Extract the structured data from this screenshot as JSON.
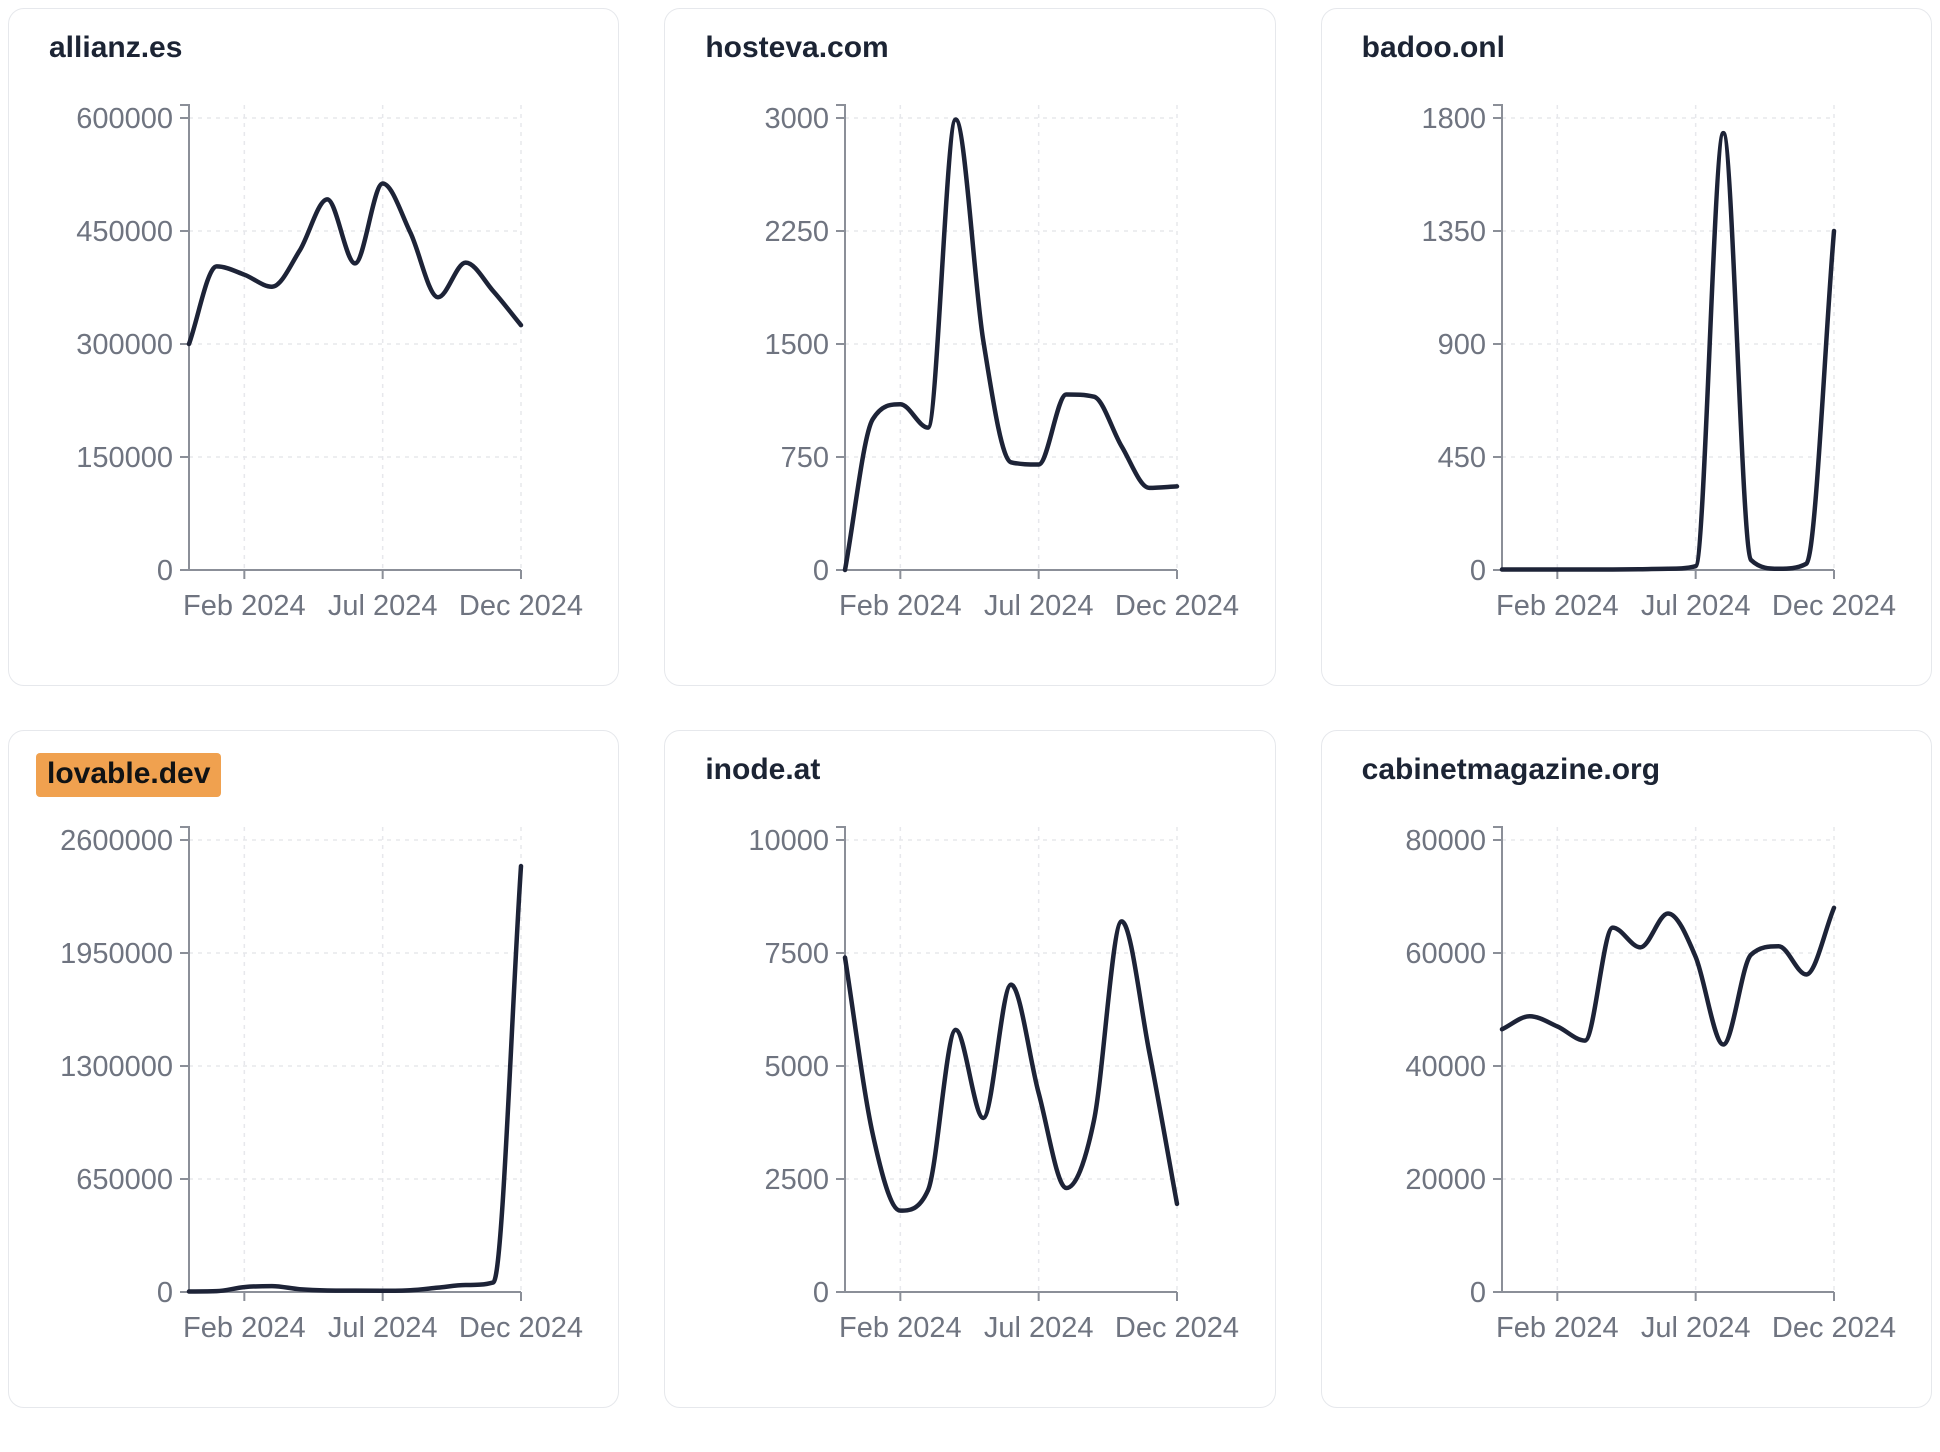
{
  "page": {
    "background": "#ffffff",
    "highlight_color": "#f0a14f",
    "line_color": "#1d2337",
    "axis_color": "#8b8f98",
    "gridline_color": "#e7e8ec",
    "tick_label_color": "#6f7480",
    "title_color": "#1c2434"
  },
  "chart_data": [
    {
      "type": "line",
      "title": "allianz.es",
      "highlighted": false,
      "xlabel": "",
      "ylabel": "",
      "ylim": [
        0,
        600000
      ],
      "grid": true,
      "legend": false,
      "y_tick_labels": [
        "0",
        "150000",
        "300000",
        "450000",
        "600000"
      ],
      "x_tick_labels": [
        "Feb 2024",
        "Jul 2024",
        "Dec 2024"
      ],
      "x": [
        "Dec 2023",
        "Jan 2024",
        "Feb 2024",
        "Mar 2024",
        "Apr 2024",
        "May 2024",
        "Jun 2024",
        "Jul 2024",
        "Aug 2024",
        "Sep 2024",
        "Oct 2024",
        "Nov 2024",
        "Dec 2024"
      ],
      "values": [
        300000,
        403000,
        392000,
        376000,
        424000,
        492000,
        407000,
        513000,
        448000,
        362000,
        408000,
        370000,
        325000
      ]
    },
    {
      "type": "line",
      "title": "hosteva.com",
      "highlighted": false,
      "xlabel": "",
      "ylabel": "",
      "ylim": [
        0,
        3000
      ],
      "grid": true,
      "legend": false,
      "y_tick_labels": [
        "0",
        "750",
        "1500",
        "2250",
        "3000"
      ],
      "x_tick_labels": [
        "Feb 2024",
        "Jul 2024",
        "Dec 2024"
      ],
      "x": [
        "Dec 2023",
        "Jan 2024",
        "Feb 2024",
        "Mar 2024",
        "Apr 2024",
        "May 2024",
        "Jun 2024",
        "Jul 2024",
        "Aug 2024",
        "Sep 2024",
        "Oct 2024",
        "Nov 2024",
        "Dec 2024"
      ],
      "values": [
        0,
        1000,
        1100,
        945,
        2990,
        1520,
        715,
        700,
        1165,
        1150,
        820,
        545,
        555
      ]
    },
    {
      "type": "line",
      "title": "badoo.onl",
      "highlighted": false,
      "xlabel": "",
      "ylabel": "",
      "ylim": [
        0,
        1800
      ],
      "grid": true,
      "legend": false,
      "y_tick_labels": [
        "0",
        "450",
        "900",
        "1350",
        "1800"
      ],
      "x_tick_labels": [
        "Feb 2024",
        "Jul 2024",
        "Dec 2024"
      ],
      "x": [
        "Dec 2023",
        "Jan 2024",
        "Feb 2024",
        "Mar 2024",
        "Apr 2024",
        "May 2024",
        "Jun 2024",
        "Jul 2024",
        "Aug 2024",
        "Sep 2024",
        "Oct 2024",
        "Nov 2024",
        "Dec 2024"
      ],
      "values": [
        2,
        2,
        2,
        2,
        2,
        3,
        5,
        15,
        1740,
        40,
        5,
        25,
        1350
      ]
    },
    {
      "type": "line",
      "title": "lovable.dev",
      "highlighted": true,
      "xlabel": "",
      "ylabel": "",
      "ylim": [
        0,
        2600000
      ],
      "grid": true,
      "legend": false,
      "y_tick_labels": [
        "0",
        "650000",
        "1300000",
        "1950000",
        "2600000"
      ],
      "x_tick_labels": [
        "Feb 2024",
        "Jul 2024",
        "Dec 2024"
      ],
      "x": [
        "Dec 2023",
        "Jan 2024",
        "Feb 2024",
        "Mar 2024",
        "Apr 2024",
        "May 2024",
        "Jun 2024",
        "Jul 2024",
        "Aug 2024",
        "Sep 2024",
        "Oct 2024",
        "Nov 2024",
        "Dec 2024"
      ],
      "values": [
        3000,
        5000,
        28000,
        34000,
        16000,
        9000,
        8000,
        7000,
        10000,
        25000,
        40000,
        55000,
        2450000
      ]
    },
    {
      "type": "line",
      "title": "inode.at",
      "highlighted": false,
      "xlabel": "",
      "ylabel": "",
      "ylim": [
        0,
        10000
      ],
      "grid": true,
      "legend": false,
      "y_tick_labels": [
        "0",
        "2500",
        "5000",
        "7500",
        "10000"
      ],
      "x_tick_labels": [
        "Feb 2024",
        "Jul 2024",
        "Dec 2024"
      ],
      "x": [
        "Dec 2023",
        "Jan 2024",
        "Feb 2024",
        "Mar 2024",
        "Apr 2024",
        "May 2024",
        "Jun 2024",
        "Jul 2024",
        "Aug 2024",
        "Sep 2024",
        "Oct 2024",
        "Nov 2024",
        "Dec 2024"
      ],
      "values": [
        7400,
        3500,
        1800,
        2250,
        5800,
        3850,
        6800,
        4400,
        2300,
        3800,
        8200,
        5300,
        1950
      ]
    },
    {
      "type": "line",
      "title": "cabinetmagazine.org",
      "highlighted": false,
      "xlabel": "",
      "ylabel": "",
      "ylim": [
        0,
        80000
      ],
      "grid": true,
      "legend": false,
      "y_tick_labels": [
        "0",
        "20000",
        "40000",
        "60000",
        "80000"
      ],
      "x_tick_labels": [
        "Feb 2024",
        "Jul 2024",
        "Dec 2024"
      ],
      "x": [
        "Dec 2023",
        "Jan 2024",
        "Feb 2024",
        "Mar 2024",
        "Apr 2024",
        "May 2024",
        "Jun 2024",
        "Jul 2024",
        "Aug 2024",
        "Sep 2024",
        "Oct 2024",
        "Nov 2024",
        "Dec 2024"
      ],
      "values": [
        46500,
        48800,
        47000,
        44500,
        64500,
        61000,
        67000,
        59300,
        43800,
        59700,
        61200,
        56200,
        68000
      ]
    }
  ]
}
